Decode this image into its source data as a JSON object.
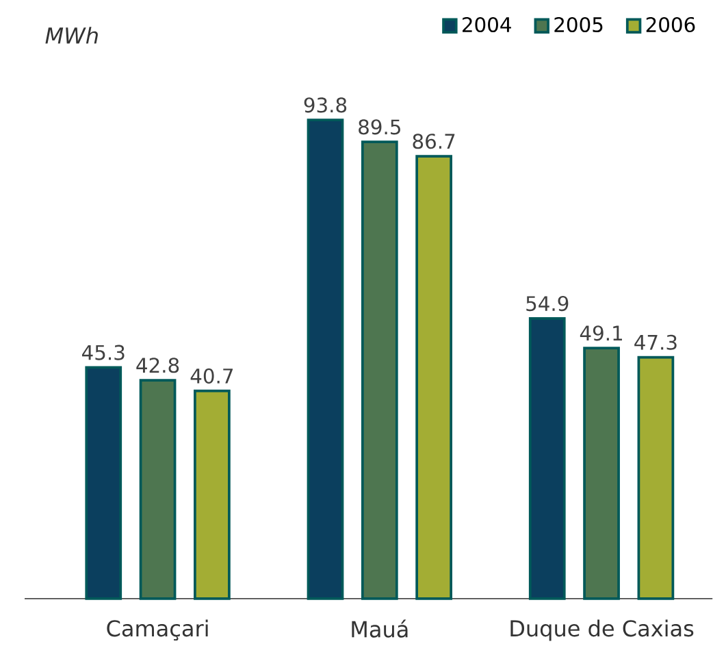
{
  "chart_data": {
    "type": "bar",
    "ylabel": "*MWh*",
    "categories": [
      "Camaçari",
      "Mauá",
      "Duque de Caxias"
    ],
    "series": [
      {
        "name": "2004",
        "color": "#0b3f5e",
        "values": [
          45.3,
          93.8,
          54.9
        ]
      },
      {
        "name": "2005",
        "color": "#4e7650",
        "values": [
          42.8,
          89.5,
          49.1
        ]
      },
      {
        "name": "2006",
        "color": "#a3ad34",
        "values": [
          40.7,
          86.7,
          47.3
        ]
      }
    ],
    "data_labels": true,
    "legend": "top right"
  }
}
